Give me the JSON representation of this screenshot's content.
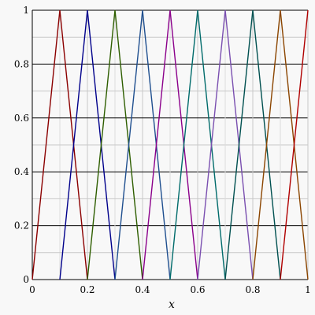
{
  "chart_data": {
    "type": "line",
    "title": "",
    "xlabel": "x",
    "ylabel": "",
    "xlim": [
      0,
      1
    ],
    "ylim": [
      0,
      1
    ],
    "grid": true,
    "legend": "none",
    "x_ticks": [
      0,
      0.2,
      0.4,
      0.6,
      0.8,
      1
    ],
    "x_tick_labels": [
      "0",
      "0.2",
      "0.4",
      "0.6",
      "0.8",
      "1"
    ],
    "y_ticks": [
      0,
      0.2,
      0.4,
      0.6,
      0.8,
      1
    ],
    "y_tick_labels": [
      "0",
      "0.2",
      "0.4",
      "0.6",
      "0.8",
      "1"
    ],
    "series": [
      {
        "color": "#8b0000",
        "x": [
          0,
          0.1,
          0.2
        ],
        "y": [
          0,
          1,
          0
        ]
      },
      {
        "color": "#00008b",
        "x": [
          0.1,
          0.2,
          0.3
        ],
        "y": [
          0,
          1,
          0
        ]
      },
      {
        "color": "#2e5e00",
        "x": [
          0.2,
          0.3,
          0.4
        ],
        "y": [
          0,
          1,
          0
        ]
      },
      {
        "color": "#1f4f8f",
        "x": [
          0.3,
          0.4,
          0.5
        ],
        "y": [
          0,
          1,
          0
        ]
      },
      {
        "color": "#8b008b",
        "x": [
          0.4,
          0.5,
          0.6
        ],
        "y": [
          0,
          1,
          0
        ]
      },
      {
        "color": "#006b6b",
        "x": [
          0.5,
          0.6,
          0.7
        ],
        "y": [
          0,
          1,
          0
        ]
      },
      {
        "color": "#7a4fb0",
        "x": [
          0.6,
          0.7,
          0.8
        ],
        "y": [
          0,
          1,
          0
        ]
      },
      {
        "color": "#005050",
        "x": [
          0.7,
          0.8,
          0.9
        ],
        "y": [
          0,
          1,
          0
        ]
      },
      {
        "color": "#8b4500",
        "x": [
          0.8,
          0.9,
          1.0
        ],
        "y": [
          0,
          1,
          0
        ]
      },
      {
        "color": "#b00000",
        "x": [
          0.9,
          1.0
        ],
        "y": [
          0,
          1
        ]
      }
    ]
  }
}
